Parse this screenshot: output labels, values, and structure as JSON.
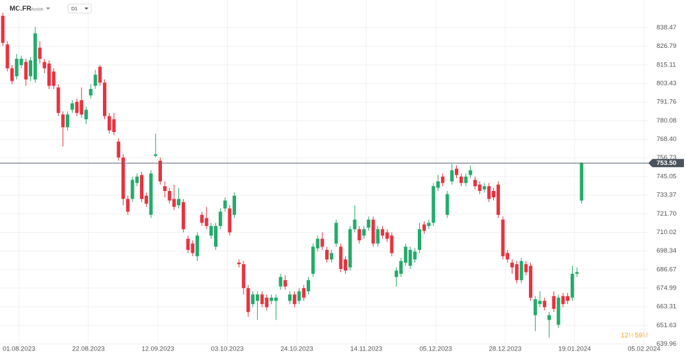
{
  "header": {
    "symbol": "MC.FR",
    "kind": "Acción",
    "timeframe": "D1"
  },
  "countdown": [
    "12",
    "H",
    "59",
    "M"
  ],
  "chart_data": {
    "type": "candlestick",
    "up_color": "#22ab6a",
    "down_color": "#e8323f",
    "grid": true,
    "ylim": [
      636.7,
      855.9
    ],
    "yticks": [
      838.47,
      826.79,
      815.11,
      803.43,
      791.76,
      780.08,
      {
        "value": 768.4,
        "label": "768.40"
      },
      756.73,
      745.05,
      733.37,
      {
        "value": 721.7,
        "label": "721.70"
      },
      710.02,
      698.34,
      686.67,
      674.99,
      663.31,
      651.63,
      639.96
    ],
    "xlim": [
      -0.6,
      139.4
    ],
    "xticks": [
      {
        "value": 3.5,
        "label": "01.08.2023"
      },
      {
        "value": 18.5,
        "label": "22.08.2023"
      },
      {
        "value": 33.5,
        "label": "12.09.2023"
      },
      {
        "value": 48.5,
        "label": "03.10.2023"
      },
      {
        "value": 63.5,
        "label": "24.10.2023"
      },
      {
        "value": 78.5,
        "label": "14.11.2023"
      },
      {
        "value": 93.5,
        "label": "05.12.2023"
      },
      {
        "value": 108.5,
        "label": "28.12.2023"
      },
      {
        "value": 123.5,
        "label": "19.01.2024"
      },
      {
        "value": 138.5,
        "label": "05.02.2024"
      }
    ],
    "last_price": {
      "value": 753.5,
      "label": "753.50"
    },
    "open": [
      846,
      828,
      813,
      808,
      815,
      817,
      808,
      806,
      826,
      817,
      816,
      811,
      801,
      784,
      776,
      787,
      792,
      793,
      781,
      796,
      802,
      814,
      804,
      783,
      781,
      767,
      757,
      731,
      731,
      741,
      746,
      733,
      721,
      758,
      755,
      739,
      736,
      731,
      727,
      729,
      706,
      703,
      695,
      721,
      719,
      708,
      701,
      714,
      725,
      725,
      721,
      691,
      690,
      675,
      665,
      667,
      671,
      669,
      667,
      667,
      676,
      680,
      667,
      671,
      667,
      675,
      673,
      684,
      700,
      706,
      699,
      693,
      703,
      701,
      693,
      688,
      712,
      712,
      708,
      713,
      718,
      703,
      712,
      710,
      708,
      682,
      684,
      691,
      689,
      693,
      699,
      715,
      714,
      716,
      738,
      745,
      721,
      742,
      750,
      745,
      741,
      746,
      743,
      740,
      737,
      739,
      736,
      740,
      718,
      697,
      691,
      690,
      680,
      690,
      689,
      658,
      665,
      667,
      655,
      670,
      652,
      670,
      670,
      669,
      684,
      730
    ],
    "high": [
      848,
      830,
      815,
      822,
      821,
      819,
      820,
      839,
      830,
      819,
      818,
      813,
      803,
      786,
      786,
      793,
      794,
      801,
      789,
      803,
      812,
      815,
      806,
      785,
      785,
      769,
      759,
      733,
      745,
      747,
      748,
      735,
      749,
      772,
      757,
      742,
      738,
      740,
      738,
      731,
      708,
      705,
      710,
      723,
      726,
      716,
      716,
      725,
      732,
      727,
      735,
      693,
      692,
      677,
      673,
      673,
      673,
      671,
      671,
      671,
      684,
      683,
      673,
      673,
      675,
      677,
      682,
      703,
      708,
      710,
      701,
      699,
      718,
      703,
      695,
      714,
      727,
      714,
      714,
      720,
      720,
      714,
      714,
      712,
      710,
      688,
      694,
      703,
      701,
      700,
      716,
      717,
      718,
      741,
      746,
      747,
      736,
      753,
      752,
      747,
      747,
      752,
      745,
      742,
      741,
      741,
      738,
      742,
      720,
      699,
      693,
      692,
      694,
      692,
      691,
      670,
      673,
      669,
      660,
      673,
      671,
      672,
      672,
      689,
      688,
      754
    ],
    "low": [
      827,
      811,
      803,
      806,
      813,
      802,
      805,
      804,
      816,
      810,
      800,
      800,
      783,
      764,
      774,
      785,
      783,
      782,
      778,
      794,
      800,
      802,
      781,
      772,
      771,
      755,
      727,
      721,
      729,
      739,
      729,
      726,
      719,
      757,
      740,
      732,
      728,
      724,
      725,
      710,
      697,
      695,
      692,
      714,
      712,
      706,
      699,
      712,
      723,
      708,
      719,
      688,
      671,
      657,
      663,
      655,
      663,
      661,
      665,
      655,
      674,
      674,
      665,
      663,
      665,
      667,
      671,
      682,
      698,
      699,
      691,
      691,
      701,
      685,
      684,
      686,
      710,
      703,
      706,
      711,
      701,
      701,
      706,
      704,
      695,
      676,
      682,
      689,
      687,
      691,
      697,
      709,
      712,
      714,
      736,
      739,
      719,
      740,
      744,
      739,
      739,
      744,
      737,
      734,
      735,
      729,
      730,
      719,
      693,
      691,
      684,
      678,
      678,
      683,
      667,
      648,
      663,
      661,
      644,
      660,
      650,
      663,
      665,
      667,
      682,
      728
    ],
    "close": [
      829,
      813,
      805,
      819,
      819,
      806,
      818,
      835,
      819,
      813,
      802,
      802,
      785,
      776,
      784,
      791,
      785,
      784,
      787,
      800,
      809,
      804,
      783,
      774,
      773,
      757,
      731,
      723,
      743,
      745,
      731,
      728,
      747,
      759,
      742,
      736,
      730,
      726,
      731,
      712,
      699,
      697,
      708,
      716,
      714,
      714,
      714,
      723,
      730,
      710,
      733,
      690,
      675,
      660,
      671,
      671,
      665,
      663,
      669,
      669,
      682,
      676,
      671,
      665,
      673,
      669,
      680,
      701,
      706,
      701,
      693,
      697,
      716,
      687,
      686,
      712,
      718,
      705,
      712,
      718,
      703,
      712,
      708,
      706,
      697,
      686,
      692,
      701,
      699,
      698,
      712,
      711,
      716,
      739,
      742,
      741,
      734,
      749,
      746,
      741,
      745,
      749,
      739,
      736,
      739,
      731,
      732,
      721,
      695,
      693,
      688,
      680,
      692,
      685,
      669,
      668,
      667,
      663,
      658,
      662,
      669,
      665,
      667,
      684,
      685,
      753.5
    ]
  }
}
